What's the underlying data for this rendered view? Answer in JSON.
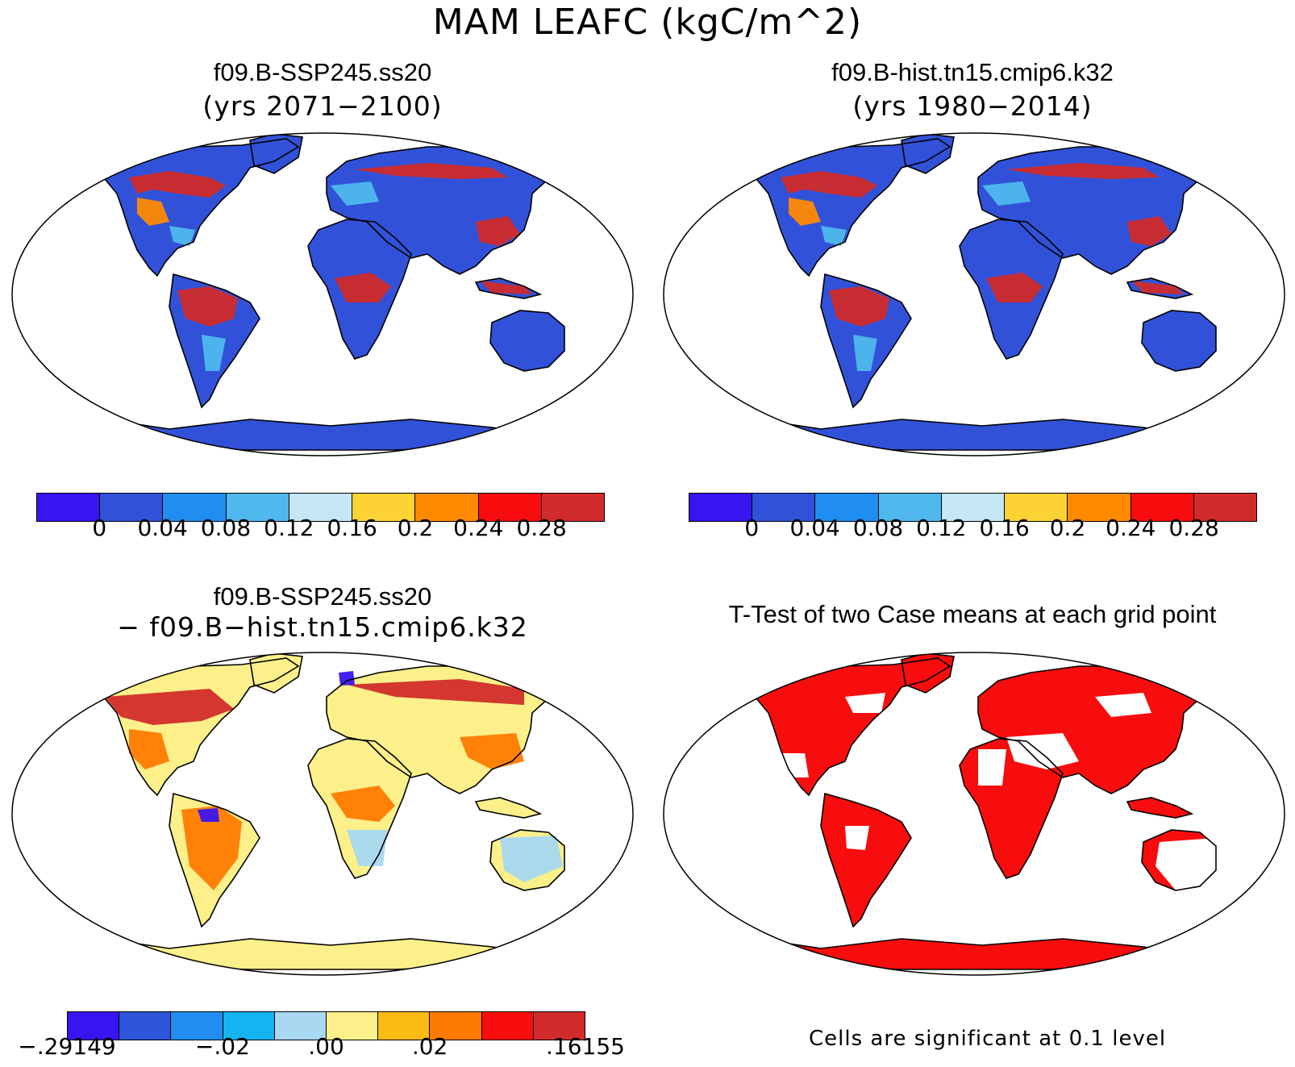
{
  "title": "MAM LEAFC (kgC/m^2)",
  "panels": {
    "tl": {
      "title": "f09.B-SSP245.ss20",
      "subtitle": "(yrs 2071−2100)"
    },
    "tr": {
      "title": "f09.B-hist.tn15.cmip6.k32",
      "subtitle": "(yrs 1980−2014)"
    },
    "bl": {
      "title": "f09.B-SSP245.ss20",
      "subtitle": "− f09.B−hist.tn15.cmip6.k32"
    },
    "br": {
      "title": "T-Test of two Case means at each grid point"
    }
  },
  "colorbar_main": {
    "colors": [
      "#3a14f0",
      "#3152d8",
      "#1f8ef0",
      "#4fb8ee",
      "#c4e6f5",
      "#fcd235",
      "#ff8a00",
      "#f70d0d",
      "#d22b2b"
    ],
    "labels": [
      "0",
      "0.04",
      "0.08",
      "0.12",
      "0.16",
      "0.2",
      "0.24",
      "0.28"
    ]
  },
  "colorbar_diff": {
    "colors": [
      "#3a14f0",
      "#2d55d8",
      "#1f8ef0",
      "#14b4f0",
      "#a8d8f2",
      "#fdf08a",
      "#fcbc14",
      "#ff7a00",
      "#f70d0d",
      "#d22b2b"
    ],
    "labels": [
      ".29149−",
      "−.02",
      ".00",
      ".02",
      ".16155"
    ],
    "labels_display": [
      "−.29149",
      "−.02",
      ".00",
      ".02",
      ".16155"
    ]
  },
  "significance_note": "Cells are significant at 0.1 level",
  "map_colors": {
    "tl": {
      "bg": "#3152d8",
      "hi": "#d22b2b",
      "mid": "#4fb8ee",
      "warm": "#ff8a00"
    },
    "tr": {
      "bg": "#3152d8",
      "hi": "#d22b2b",
      "mid": "#4fb8ee",
      "warm": "#ff8a00"
    },
    "bl": {
      "bg": "#fdf08a",
      "hi": "#d22b2b",
      "mid": "#a8d8f2",
      "warm": "#ff7a00"
    },
    "br": {
      "bg": "#f70d0d",
      "hi": "#f70d0d",
      "mid": "#ffffff",
      "warm": "#f70d0d"
    }
  }
}
